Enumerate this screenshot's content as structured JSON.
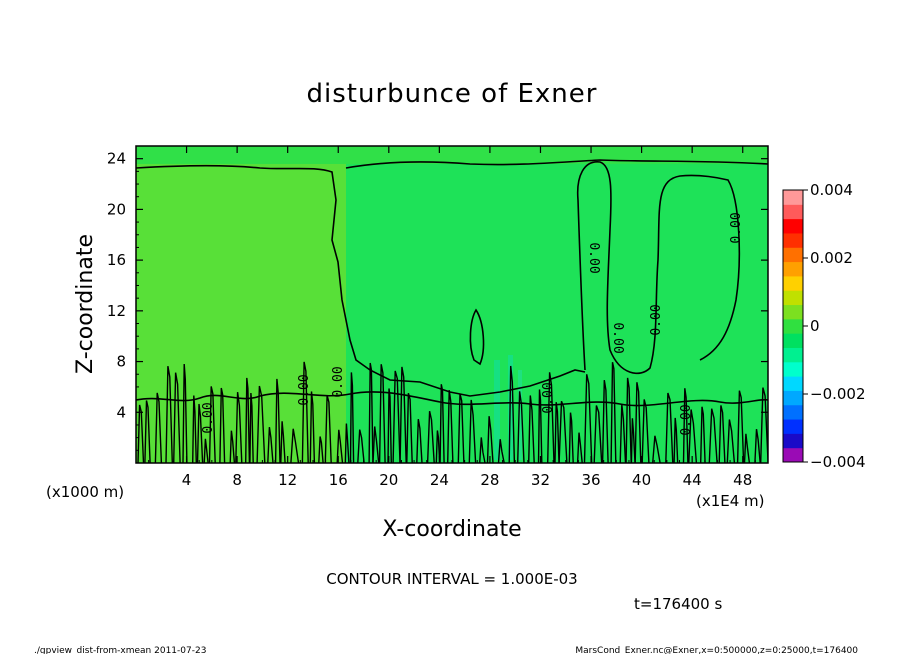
{
  "chart_data": {
    "type": "heatmap",
    "title": "disturbunce of Exner",
    "xlabel": "X-coordinate",
    "ylabel": "Z-coordinate",
    "x_unit": "(x1000 m)",
    "x_multiplier": "(x1E4 m)",
    "xlim": [
      0,
      50
    ],
    "ylim": [
      0,
      25
    ],
    "xticks": [
      4,
      8,
      12,
      16,
      20,
      24,
      28,
      32,
      36,
      40,
      44,
      48
    ],
    "yticks": [
      4,
      8,
      12,
      16,
      20,
      24
    ],
    "colorbar": {
      "range": [
        -0.004,
        0.004
      ],
      "tick_labels": [
        "0.004",
        "0.002",
        "0",
        "−0.002",
        "−0.004"
      ],
      "colors": [
        "#9a0bb5",
        "#1a0ac8",
        "#0030ff",
        "#0070ff",
        "#00a8ff",
        "#00d8ff",
        "#00ffcc",
        "#00f090",
        "#00e060",
        "#30e040",
        "#7ce020",
        "#c0e000",
        "#ffd000",
        "#ffa000",
        "#ff7000",
        "#ff3000",
        "#ff0000",
        "#ff5a5a",
        "#ff9999"
      ]
    },
    "regions": [
      {
        "x": [
          0,
          16
        ],
        "z": [
          0,
          24
        ],
        "value": 0.0003
      },
      {
        "x": [
          16,
          50
        ],
        "z": [
          0,
          24
        ],
        "value": 0.0
      }
    ],
    "contour_labels": [
      "0.00",
      "0.00",
      "0.00",
      "0.00",
      "0.00",
      "0.00",
      "0.00",
      "0.00",
      "0.00"
    ],
    "contour_interval_text": "CONTOUR INTERVAL = 1.000E-03",
    "time_text": "t=176400 s",
    "footer_left": "./gpview_dist-from-xmean  2011-07-23",
    "footer_right": "MarsCond_Exner.nc@Exner,x=0:500000,z=0:25000,t=176400"
  },
  "colors": {
    "region_left": "#58e038",
    "region_right": "#1ee258",
    "contour": "#000000"
  }
}
